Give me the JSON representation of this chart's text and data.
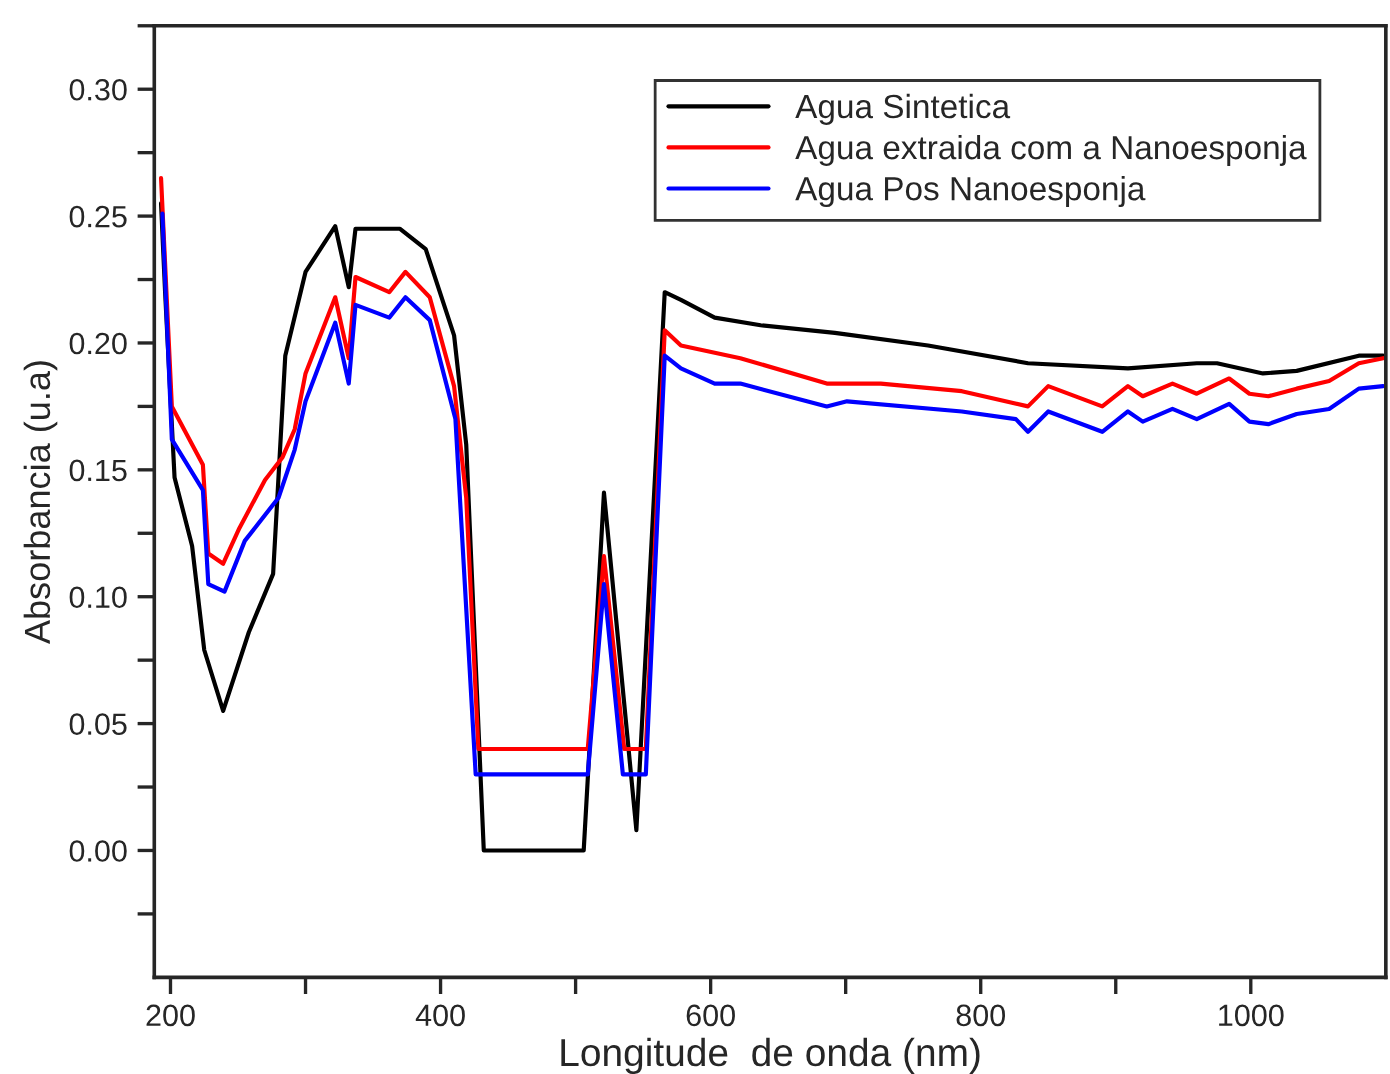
{
  "chart_data": {
    "type": "line",
    "xlabel": "Longitude  de onda (nm)",
    "ylabel": "Absorbancia (u.a)",
    "xlim": [
      188,
      1100
    ],
    "ylim": [
      -0.05,
      0.325
    ],
    "xticks": [
      200,
      {
        "value": 300,
        "label": null
      },
      400,
      {
        "value": 500,
        "label": null
      },
      600,
      {
        "value": 700,
        "label": null
      },
      800,
      {
        "value": 900,
        "label": null
      },
      1000
    ],
    "yticks": [
      {
        "value": -0.025,
        "label": null
      },
      {
        "value": 0,
        "label": "0.00"
      },
      {
        "value": 0.025,
        "label": null
      },
      0.05,
      {
        "value": 0.075,
        "label": null
      },
      {
        "value": 0.1,
        "label": "0.10"
      },
      {
        "value": 0.125,
        "label": null
      },
      0.15,
      {
        "value": 0.175,
        "label": null
      },
      {
        "value": 0.2,
        "label": "0.20"
      },
      {
        "value": 0.225,
        "label": null
      },
      0.25,
      {
        "value": 0.275,
        "label": null
      },
      {
        "value": 0.3,
        "label": "0.30"
      },
      {
        "value": 0.325,
        "label": null
      }
    ],
    "legend": "top right",
    "marker": "none",
    "line_style": "solid",
    "series": [
      {
        "name": "Agua Sintetica",
        "color": "#000000",
        "x": [
          193,
          196,
          203,
          216,
          225,
          239,
          258,
          276,
          285,
          300,
          322,
          332,
          337,
          370,
          389,
          410,
          419,
          432,
          506,
          521,
          545,
          566,
          578,
          603,
          637,
          692,
          761,
          835,
          909,
          960,
          975,
          1009,
          1034,
          1080,
          1098
        ],
        "values": [
          0.255,
          0.22,
          0.147,
          0.12,
          0.079,
          0.055,
          0.086,
          0.109,
          0.195,
          0.228,
          0.246,
          0.222,
          0.245,
          0.245,
          0.237,
          0.203,
          0.16,
          0.0,
          0.0,
          0.141,
          0.008,
          0.22,
          0.217,
          0.21,
          0.207,
          0.204,
          0.199,
          0.192,
          0.19,
          0.192,
          0.192,
          0.188,
          0.189,
          0.195,
          0.195
        ]
      },
      {
        "name": "Agua extraida com a Nanoesponja",
        "color": "#ff0000",
        "x": [
          193,
          201,
          224,
          228,
          239,
          251,
          270,
          283,
          292,
          300,
          322,
          332,
          337,
          362,
          374,
          392,
          410,
          419,
          428,
          509,
          521,
          536,
          552,
          566,
          578,
          622,
          686,
          726,
          786,
          835,
          850,
          890,
          909,
          920,
          942,
          960,
          984,
          999,
          1013,
          1034,
          1058,
          1080,
          1098
        ],
        "values": [
          0.265,
          0.175,
          0.152,
          0.117,
          0.113,
          0.127,
          0.146,
          0.155,
          0.166,
          0.188,
          0.218,
          0.194,
          0.226,
          0.22,
          0.228,
          0.218,
          0.183,
          0.139,
          0.04,
          0.04,
          0.116,
          0.04,
          0.04,
          0.205,
          0.199,
          0.194,
          0.184,
          0.184,
          0.181,
          0.175,
          0.183,
          0.175,
          0.183,
          0.179,
          0.184,
          0.18,
          0.186,
          0.18,
          0.179,
          0.182,
          0.185,
          0.192,
          0.194
        ]
      },
      {
        "name": "Agua Pos Nanoesponja",
        "color": "#0000ff",
        "x": [
          194,
          201,
          224,
          228,
          240,
          255,
          280,
          292,
          300,
          322,
          332,
          337,
          362,
          374,
          392,
          411,
          426,
          509,
          521,
          535,
          552,
          566,
          578,
          603,
          622,
          686,
          701,
          786,
          826,
          835,
          850,
          890,
          909,
          920,
          942,
          960,
          984,
          999,
          1013,
          1034,
          1058,
          1080,
          1098
        ],
        "values": [
          0.251,
          0.162,
          0.142,
          0.105,
          0.102,
          0.122,
          0.139,
          0.158,
          0.177,
          0.208,
          0.184,
          0.215,
          0.21,
          0.218,
          0.209,
          0.17,
          0.03,
          0.03,
          0.105,
          0.03,
          0.03,
          0.195,
          0.19,
          0.184,
          0.184,
          0.175,
          0.177,
          0.173,
          0.17,
          0.165,
          0.173,
          0.165,
          0.173,
          0.169,
          0.174,
          0.17,
          0.176,
          0.169,
          0.168,
          0.172,
          0.174,
          0.182,
          0.183
        ]
      }
    ]
  }
}
